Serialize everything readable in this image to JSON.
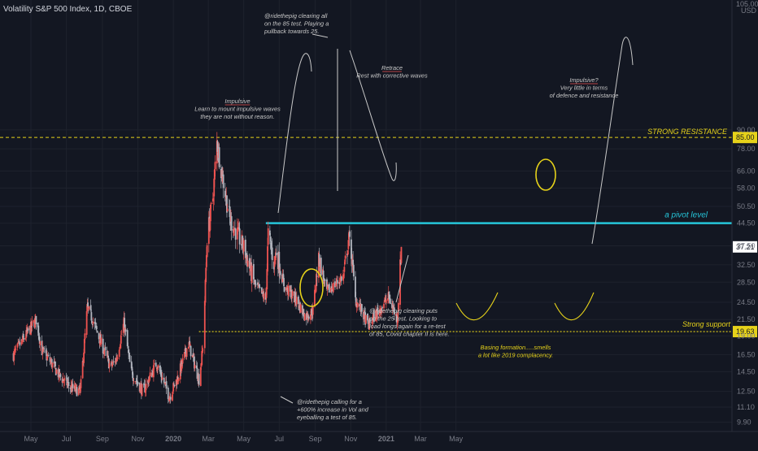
{
  "header": {
    "title": "Volatility S&P 500 Index, 1D, CBOE",
    "currency": "USD",
    "top_tick": "105.00"
  },
  "chart_data": {
    "type": "candlestick",
    "title": "Volatility S&P 500 Index, 1D, CBOE",
    "scale": "log",
    "grid": true,
    "price_ticks": [
      "9.90",
      "11.10",
      "12.50",
      "14.50",
      "16.50",
      "19.00",
      "21.50",
      "24.50",
      "28.50",
      "32.50",
      "37.50",
      "44.50",
      "50.50",
      "58.00",
      "66.00",
      "78.00",
      "90.00"
    ],
    "time_ticks": [
      "May",
      "Jul",
      "Sep",
      "Nov",
      "2020",
      "Mar",
      "May",
      "Jul",
      "Sep",
      "Nov",
      "2021",
      "Mar",
      "May"
    ],
    "x_range": [
      "2019-04",
      "2021-05"
    ],
    "y_range": [
      9.5,
      105
    ],
    "current_price": "37.21",
    "levels": [
      {
        "name": "strong-resistance",
        "value": 85.0,
        "label": "85.00",
        "text": "STRONG RESISTANCE",
        "color": "#e6d21a",
        "style": "dashed"
      },
      {
        "name": "pivot",
        "value": 44.5,
        "text": "a pivot level",
        "color": "#26c6da",
        "style": "solid"
      },
      {
        "name": "strong-support",
        "value": 19.63,
        "label": "19.63",
        "text": "Strong support",
        "color": "#e6d21a",
        "style": "dotted"
      }
    ],
    "anchors": [
      [
        "2019-04-01",
        16.5
      ],
      [
        "2019-05-10",
        21.5
      ],
      [
        "2019-05-20",
        17.0
      ],
      [
        "2019-06-05",
        15.5
      ],
      [
        "2019-06-20",
        14.0
      ],
      [
        "2019-07-10",
        12.8
      ],
      [
        "2019-07-25",
        12.5
      ],
      [
        "2019-08-06",
        23.5
      ],
      [
        "2019-08-15",
        21.5
      ],
      [
        "2019-08-25",
        19.0
      ],
      [
        "2019-09-15",
        15.0
      ],
      [
        "2019-09-25",
        16.0
      ],
      [
        "2019-10-08",
        21.0
      ],
      [
        "2019-10-20",
        14.5
      ],
      [
        "2019-11-10",
        12.5
      ],
      [
        "2019-12-03",
        15.5
      ],
      [
        "2019-12-25",
        12.0
      ],
      [
        "2020-01-08",
        13.8
      ],
      [
        "2020-01-27",
        18.0
      ],
      [
        "2020-02-14",
        13.7
      ],
      [
        "2020-02-21",
        17.5
      ],
      [
        "2020-02-28",
        40.0
      ],
      [
        "2020-03-09",
        54.0
      ],
      [
        "2020-03-16",
        82.0
      ],
      [
        "2020-03-26",
        62.0
      ],
      [
        "2020-04-07",
        46.0
      ],
      [
        "2020-04-20",
        41.0
      ],
      [
        "2020-05-01",
        37.0
      ],
      [
        "2020-05-20",
        28.0
      ],
      [
        "2020-06-08",
        25.0
      ],
      [
        "2020-06-12",
        41.0
      ],
      [
        "2020-06-22",
        33.0
      ],
      [
        "2020-06-26",
        36.0
      ],
      [
        "2020-07-10",
        27.5
      ],
      [
        "2020-07-30",
        25.0
      ],
      [
        "2020-08-15",
        22.0
      ],
      [
        "2020-08-28",
        23.0
      ],
      [
        "2020-09-04",
        31.0
      ],
      [
        "2020-09-08",
        34.0
      ],
      [
        "2020-09-20",
        26.5
      ],
      [
        "2020-10-05",
        28.0
      ],
      [
        "2020-10-20",
        30.0
      ],
      [
        "2020-10-28",
        39.5
      ],
      [
        "2020-11-02",
        36.0
      ],
      [
        "2020-11-09",
        25.0
      ],
      [
        "2020-11-20",
        23.0
      ],
      [
        "2020-12-01",
        20.5
      ],
      [
        "2020-12-15",
        22.5
      ],
      [
        "2021-01-05",
        25.5
      ],
      [
        "2021-01-20",
        21.5
      ],
      [
        "2021-01-27",
        37.21
      ]
    ],
    "annotations": [
      {
        "name": "annotation-clearing-85",
        "lines": [
          "@ridethepig clearing all",
          "on the 85 test. Playing a",
          "pullback towards 25."
        ],
        "color": "#c8c8c8"
      },
      {
        "name": "annotation-impulsive-1",
        "lines": [
          "Impulsive",
          "Learn to mount impulsive waves",
          "they are not without reason."
        ],
        "color": "#c8c8c8"
      },
      {
        "name": "annotation-retrace",
        "lines": [
          "Retrace",
          "Rest with corrective waves"
        ],
        "color": "#c8c8c8"
      },
      {
        "name": "annotation-impulsive-2",
        "lines": [
          "Impulsive?",
          "Very little in terms",
          "of defence and resistance"
        ],
        "color": "#c8c8c8"
      },
      {
        "name": "annotation-clearing-puts",
        "lines": [
          "@ridethepig clearing puts",
          "on the 25 test.  Looking to",
          "load longs again for a re-test",
          "of 85, Covid chapter II is here."
        ],
        "color": "#c8c8c8"
      },
      {
        "name": "annotation-basing",
        "lines": [
          "Basing formation.....smells",
          "a lot like 2019 complacency."
        ],
        "color": "#e6d21a"
      },
      {
        "name": "annotation-calling-600",
        "lines": [
          "@ridethepig calling for a",
          "+600% increase in Vol and",
          "eyeballing a test of 85."
        ],
        "color": "#c8c8c8"
      }
    ]
  }
}
